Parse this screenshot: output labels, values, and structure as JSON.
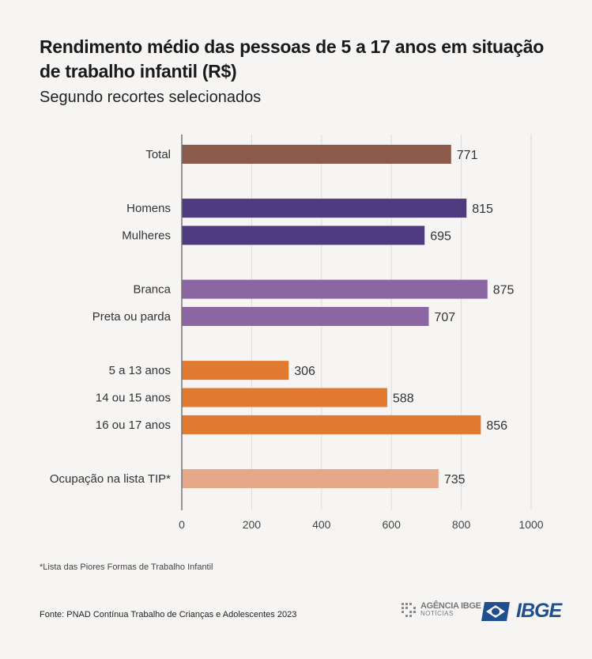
{
  "header": {
    "title": "Rendimento médio das pessoas de 5 a 17 anos em situação de trabalho infantil (R$)",
    "subtitle": "Segundo recortes selecionados"
  },
  "chart_data": {
    "type": "bar",
    "orientation": "horizontal",
    "categories": [
      "Total",
      "Homens",
      "Mulheres",
      "Branca",
      "Preta ou parda",
      "5 a 13 anos",
      "14 ou 15 anos",
      "16 ou 17 anos",
      "Ocupação na lista TIP*"
    ],
    "values": [
      771,
      815,
      695,
      875,
      707,
      306,
      588,
      856,
      735
    ],
    "groups": [
      0,
      1,
      1,
      2,
      2,
      3,
      3,
      3,
      4
    ],
    "colors": [
      "#8b5a4a",
      "#4e3a7f",
      "#4e3a7f",
      "#8c65a3",
      "#8c65a3",
      "#e07a30",
      "#e07a30",
      "#e07a30",
      "#e5a98a"
    ],
    "xlim": [
      0,
      1000
    ],
    "xticks": [
      0,
      200,
      400,
      600,
      800,
      1000
    ],
    "xlabel": "",
    "ylabel": "",
    "grid": true,
    "legend": "none"
  },
  "footer": {
    "footnote": "*Lista das Piores Formas de Trabalho Infantil",
    "source": "Fonte: PNAD Contínua Trabalho de Crianças e Adolescentes 2023",
    "logo_agencia_line1": "AGÊNCIA IBGE",
    "logo_agencia_line2": "NOTÍCIAS",
    "logo_ibge": "IBGE"
  }
}
